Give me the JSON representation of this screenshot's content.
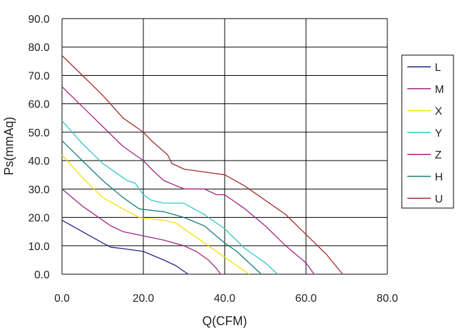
{
  "chart_data": {
    "type": "line",
    "title": "",
    "xlabel": "Q(CFM)",
    "ylabel": "Ps(mmAq)",
    "xlim": [
      0,
      80
    ],
    "ylim": [
      0,
      90
    ],
    "x_ticks": [
      "0.0",
      "20.0",
      "40.0",
      "60.0",
      "80.0"
    ],
    "y_ticks": [
      "0.0",
      "10.0",
      "20.0",
      "30.0",
      "40.0",
      "50.0",
      "60.0",
      "70.0",
      "80.0",
      "90.0"
    ],
    "grid": true,
    "legend_position": "right",
    "series": [
      {
        "name": "L",
        "color": "#1f1f8a",
        "points": [
          [
            0,
            19
          ],
          [
            5,
            15
          ],
          [
            10,
            11
          ],
          [
            12,
            9.5
          ],
          [
            15,
            9
          ],
          [
            20,
            8
          ],
          [
            25,
            5
          ],
          [
            28,
            3
          ],
          [
            30,
            1
          ],
          [
            31,
            0
          ]
        ]
      },
      {
        "name": "M",
        "color": "#a0207f",
        "points": [
          [
            0,
            30
          ],
          [
            5,
            24
          ],
          [
            10,
            19
          ],
          [
            12,
            17
          ],
          [
            15,
            15
          ],
          [
            20,
            13.5
          ],
          [
            25,
            12
          ],
          [
            30,
            10
          ],
          [
            33,
            8
          ],
          [
            36,
            5
          ],
          [
            38,
            2
          ],
          [
            39,
            0
          ]
        ]
      },
      {
        "name": "X",
        "color": "#f2e000",
        "points": [
          [
            0,
            42
          ],
          [
            5,
            34
          ],
          [
            10,
            27
          ],
          [
            15,
            23
          ],
          [
            19,
            20
          ],
          [
            22,
            19.5
          ],
          [
            25,
            19
          ],
          [
            28,
            18
          ],
          [
            31,
            15
          ],
          [
            35,
            11
          ],
          [
            40,
            6
          ],
          [
            43,
            3
          ],
          [
            46,
            0
          ]
        ]
      },
      {
        "name": "Y",
        "color": "#2fc4c4",
        "points": [
          [
            0,
            54
          ],
          [
            5,
            46
          ],
          [
            10,
            39
          ],
          [
            15,
            34
          ],
          [
            16,
            33
          ],
          [
            18,
            32
          ],
          [
            20,
            28
          ],
          [
            22,
            26
          ],
          [
            25,
            25
          ],
          [
            30,
            25
          ],
          [
            35,
            21
          ],
          [
            40,
            16
          ],
          [
            45,
            9
          ],
          [
            50,
            4
          ],
          [
            53,
            0
          ]
        ]
      },
      {
        "name": "Z",
        "color": "#a0207f",
        "points": [
          [
            0,
            66
          ],
          [
            5,
            59
          ],
          [
            10,
            52
          ],
          [
            15,
            45
          ],
          [
            20,
            40
          ],
          [
            22,
            37
          ],
          [
            25,
            33
          ],
          [
            30,
            30
          ],
          [
            35,
            30
          ],
          [
            38,
            28
          ],
          [
            40,
            28
          ],
          [
            45,
            23
          ],
          [
            50,
            17
          ],
          [
            55,
            10
          ],
          [
            60,
            4
          ],
          [
            62,
            0
          ]
        ]
      },
      {
        "name": "H",
        "color": "#137c7c",
        "points": [
          [
            0,
            47
          ],
          [
            5,
            40
          ],
          [
            10,
            33
          ],
          [
            15,
            27
          ],
          [
            19,
            23
          ],
          [
            22,
            22.5
          ],
          [
            25,
            22
          ],
          [
            30,
            20
          ],
          [
            35,
            17
          ],
          [
            40,
            11
          ],
          [
            43,
            8
          ],
          [
            46,
            4
          ],
          [
            49,
            0
          ]
        ]
      },
      {
        "name": "U",
        "color": "#a02828",
        "points": [
          [
            0,
            77
          ],
          [
            5,
            70
          ],
          [
            10,
            63
          ],
          [
            15,
            55
          ],
          [
            20,
            50
          ],
          [
            22,
            47
          ],
          [
            26,
            42
          ],
          [
            27,
            39
          ],
          [
            30,
            37
          ],
          [
            35,
            36
          ],
          [
            40,
            35
          ],
          [
            45,
            31
          ],
          [
            50,
            26
          ],
          [
            55,
            21
          ],
          [
            60,
            14
          ],
          [
            65,
            7
          ],
          [
            69,
            0
          ]
        ]
      }
    ]
  }
}
